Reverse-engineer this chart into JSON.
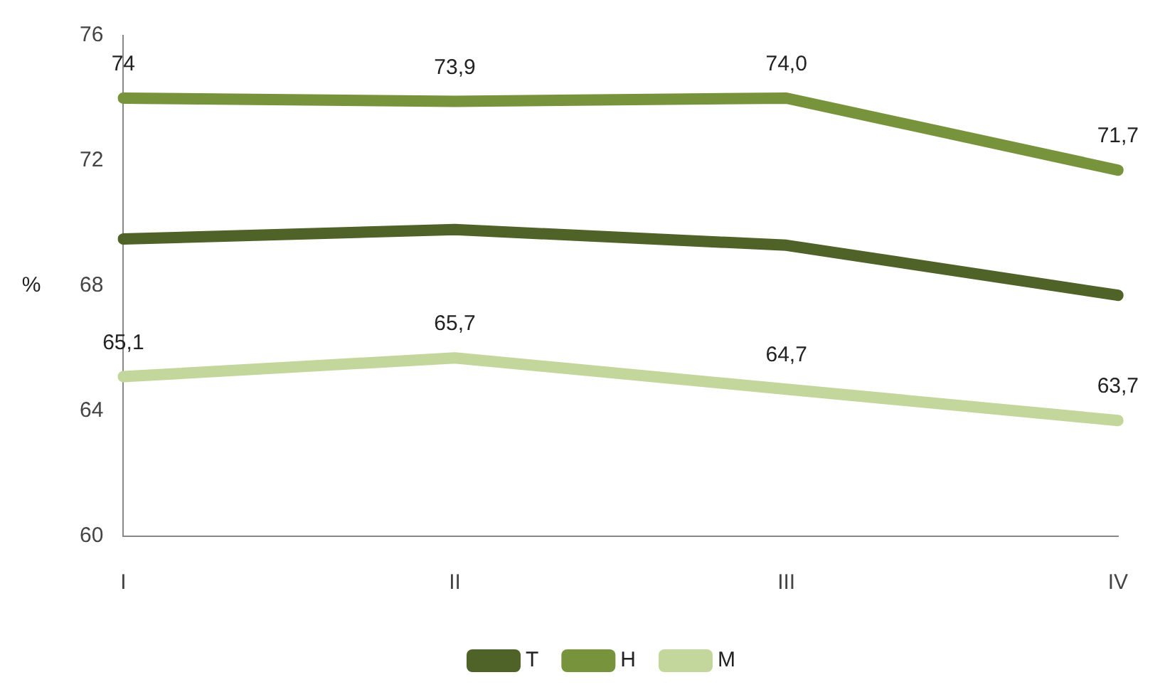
{
  "chart_data": {
    "type": "line",
    "ylabel": "%",
    "categories": [
      "I",
      "II",
      "III",
      "IV"
    ],
    "series": [
      {
        "name": "T",
        "color": "#4f6228",
        "values": [
          69.5,
          69.8,
          69.3,
          67.7
        ]
      },
      {
        "name": "H",
        "color": "#77933c",
        "values": [
          74,
          73.9,
          74.0,
          71.7
        ],
        "value_labels": [
          "74",
          "73,9",
          "74,0",
          "71,7"
        ]
      },
      {
        "name": "M",
        "color": "#c3d69b",
        "values": [
          65.1,
          65.7,
          64.7,
          63.7
        ],
        "value_labels": [
          "65,1",
          "65,7",
          "64,7",
          "63,7"
        ]
      }
    ],
    "ylim": [
      60,
      76
    ],
    "yticks": [
      60,
      64,
      68,
      72,
      76
    ],
    "grid": false,
    "legend": "bottom",
    "marker": "none",
    "line_style": "solid"
  }
}
